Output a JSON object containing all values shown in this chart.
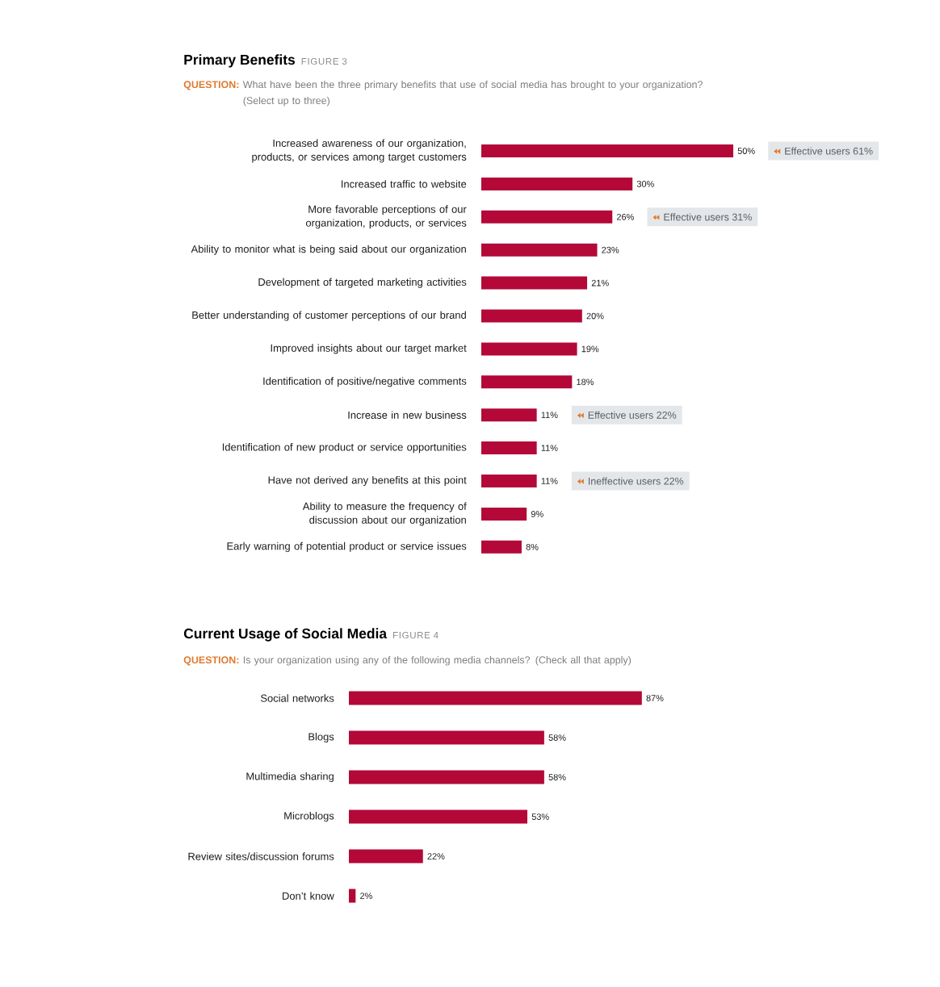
{
  "chart_data": [
    {
      "type": "bar",
      "orientation": "horizontal",
      "title": "Primary Benefits",
      "subtitle": "What have been the three primary benefits that use of social media has brought to your organization? (Select up to three)",
      "categories": [
        "Increased awareness of our organization, products, or services among target customers",
        "Increased traffic to website",
        "More favorable perceptions of our organization, products, or services",
        "Ability to monitor what is being said about our organization",
        "Development of targeted marketing activities",
        "Better understanding of customer perceptions of our brand",
        "Improved insights about our target market",
        "Identification of positive/negative comments",
        "Increase in new business",
        "Identification of new product or service opportunities",
        "Have not derived any benefits at this point",
        "Ability to measure the frequency of discussion about our organization",
        "Early warning of potential product or service issues"
      ],
      "values": [
        50,
        30,
        26,
        23,
        21,
        20,
        19,
        18,
        11,
        11,
        11,
        9,
        8
      ],
      "value_labels": [
        "50%",
        "30%",
        "26%",
        "23%",
        "21%",
        "20%",
        "19%",
        "18%",
        "11%",
        "11%",
        "11%",
        "9%",
        "8%"
      ],
      "color": "#b30838",
      "tick_labels": "y",
      "annotations": [
        "FIGURE 3",
        "QUESTION:",
        "Effective users 61%",
        "Effective users 31%",
        "Effective users 22%",
        "Ineffective users 22%"
      ]
    },
    {
      "type": "bar",
      "orientation": "horizontal",
      "title": "Current Usage of Social Media",
      "subtitle": "Is your organization using any of the following media channels? (Check all that apply)",
      "categories": [
        "Social networks",
        "Blogs",
        "Multimedia sharing",
        "Microblogs",
        "Review sites/discussion forums",
        "Don’t know"
      ],
      "values": [
        87,
        58,
        58,
        53,
        22,
        2
      ],
      "value_labels": [
        "87%",
        "58%",
        "58%",
        "53%",
        "22%",
        "2%"
      ],
      "color": "#b30838",
      "tick_labels": "y",
      "annotations": [
        "FIGURE 4",
        "QUESTION:"
      ]
    }
  ]
}
